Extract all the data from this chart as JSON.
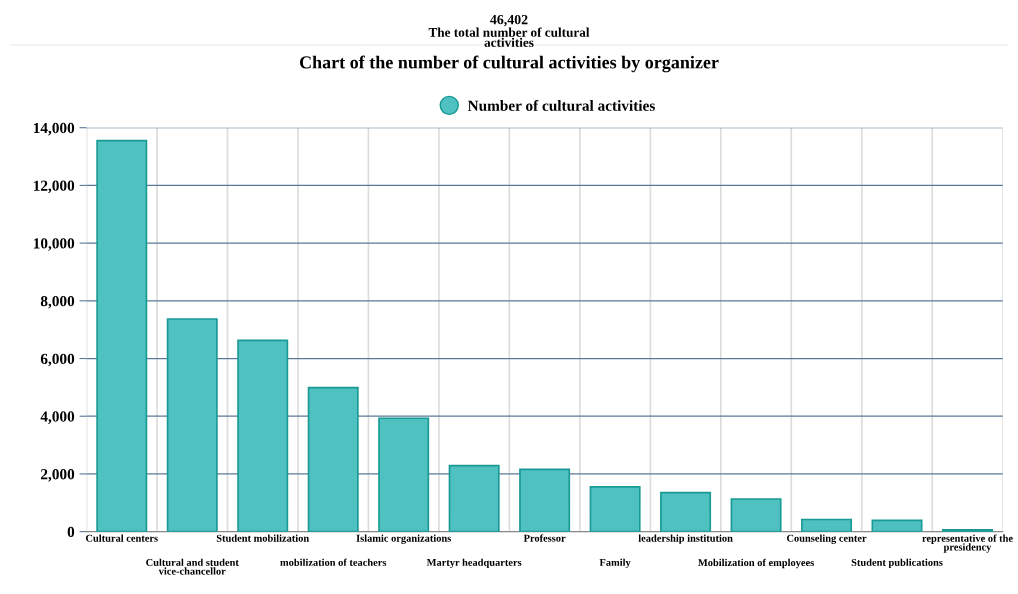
{
  "chart_data": {
    "type": "bar",
    "title": "Chart of the number of cultural activities by organizer",
    "annotations": [
      "46,402",
      "The total number of cultural\nactivities"
    ],
    "categories": [
      "Cultural centers",
      "Cultural and student\nvice-chancellor",
      "Student mobilization",
      "mobilization of teachers",
      "Islamic organizations",
      "Martyr headquarters",
      "Professor",
      "Family",
      "leadership institution",
      "Mobilization of employees",
      "Counseling center",
      "Student publications",
      "representative of the\npresidency"
    ],
    "series": [
      {
        "name": "Number of cultural activities",
        "color": "#4fc1c1",
        "values": [
          13550,
          7370,
          6630,
          4990,
          3930,
          2290,
          2160,
          1550,
          1350,
          1130,
          420,
          390,
          60
        ]
      }
    ],
    "ylim": [
      0,
      14000
    ],
    "yticks": [
      0,
      {
        "value": 2000,
        "label": "2,000"
      },
      {
        "value": 4000,
        "label": "4,000"
      },
      {
        "value": 6000,
        "label": "6,000"
      },
      {
        "value": 8000,
        "label": "8,000"
      },
      {
        "value": 10000,
        "label": "10,000"
      },
      {
        "value": 12000,
        "label": "12,000"
      },
      {
        "value": 14000,
        "label": "14,000"
      }
    ],
    "grid": true,
    "legend": "top",
    "marker": "circle"
  }
}
